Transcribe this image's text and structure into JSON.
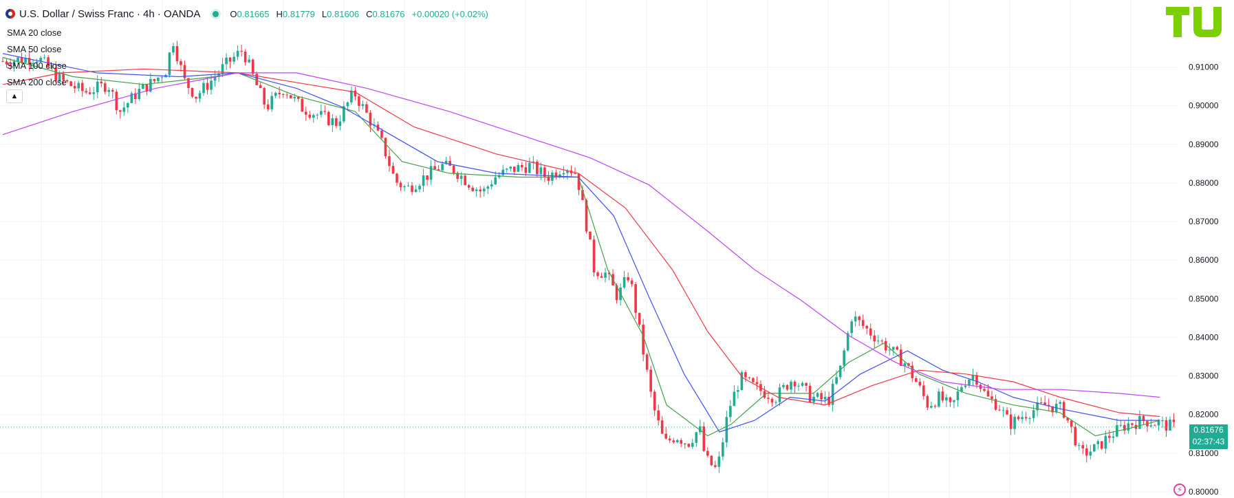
{
  "header": {
    "title": "U.S. Dollar / Swiss Franc · 4h · OANDA",
    "ohlc": {
      "o_label": "O",
      "o_value": "0.81665",
      "h_label": "H",
      "h_value": "0.81779",
      "l_label": "L",
      "l_value": "0.81606",
      "c_label": "C",
      "c_value": "0.81676",
      "change": "+0.00020 (+0.02%)"
    }
  },
  "legend": {
    "sma20": "SMA 20 close",
    "sma50": "SMA 50 close",
    "sma100": "SMA 100 close",
    "sma200": "SMA 200 close",
    "collapse_icon": "chevron-up-icon"
  },
  "price_badge": {
    "price": "0.81676",
    "countdown": "02:37:43"
  },
  "colors": {
    "up": "#22ab94",
    "down": "#f23645",
    "sma20": "#43a047",
    "sma50": "#3f51f5",
    "sma100": "#f23645",
    "sma200": "#c040fb",
    "logo": "#7ccf00"
  },
  "chart_data": {
    "type": "candlestick",
    "y_axis": {
      "ticks": [
        "0.91000",
        "0.90000",
        "0.89000",
        "0.88000",
        "0.87000",
        "0.86000",
        "0.85000",
        "0.84000",
        "0.83000",
        "0.82000",
        "0.81000",
        "0.80000"
      ],
      "range": [
        0.8,
        0.921
      ],
      "position": "right"
    },
    "last_price": 0.81676,
    "price_path": [
      [
        0,
        0.9115
      ],
      [
        0.03,
        0.9125
      ],
      [
        0.05,
        0.9065
      ],
      [
        0.07,
        0.9035
      ],
      [
        0.09,
        0.9055
      ],
      [
        0.1,
        0.8985
      ],
      [
        0.115,
        0.9035
      ],
      [
        0.13,
        0.9065
      ],
      [
        0.14,
        0.9095
      ],
      [
        0.145,
        0.9175
      ],
      [
        0.155,
        0.9065
      ],
      [
        0.165,
        0.9025
      ],
      [
        0.175,
        0.9055
      ],
      [
        0.19,
        0.9105
      ],
      [
        0.205,
        0.9145
      ],
      [
        0.215,
        0.9065
      ],
      [
        0.225,
        0.8995
      ],
      [
        0.24,
        0.9045
      ],
      [
        0.255,
        0.8995
      ],
      [
        0.27,
        0.8975
      ],
      [
        0.285,
        0.8955
      ],
      [
        0.3,
        0.9035
      ],
      [
        0.315,
        0.8955
      ],
      [
        0.325,
        0.8895
      ],
      [
        0.335,
        0.8805
      ],
      [
        0.345,
        0.8785
      ],
      [
        0.36,
        0.8815
      ],
      [
        0.375,
        0.8845
      ],
      [
        0.385,
        0.8835
      ],
      [
        0.4,
        0.8795
      ],
      [
        0.41,
        0.8775
      ],
      [
        0.42,
        0.8815
      ],
      [
        0.435,
        0.8835
      ],
      [
        0.45,
        0.8845
      ],
      [
        0.465,
        0.8815
      ],
      [
        0.48,
        0.8845
      ],
      [
        0.49,
        0.8825
      ],
      [
        0.5,
        0.8665
      ],
      [
        0.505,
        0.8575
      ],
      [
        0.515,
        0.8565
      ],
      [
        0.525,
        0.8505
      ],
      [
        0.535,
        0.8565
      ],
      [
        0.545,
        0.8395
      ],
      [
        0.555,
        0.8225
      ],
      [
        0.565,
        0.8125
      ],
      [
        0.575,
        0.8145
      ],
      [
        0.585,
        0.8125
      ],
      [
        0.595,
        0.8165
      ],
      [
        0.6,
        0.8085
      ],
      [
        0.61,
        0.8055
      ],
      [
        0.62,
        0.8215
      ],
      [
        0.63,
        0.8295
      ],
      [
        0.645,
        0.8265
      ],
      [
        0.66,
        0.8245
      ],
      [
        0.675,
        0.8295
      ],
      [
        0.69,
        0.8245
      ],
      [
        0.705,
        0.8235
      ],
      [
        0.715,
        0.8315
      ],
      [
        0.725,
        0.8455
      ],
      [
        0.74,
        0.8415
      ],
      [
        0.755,
        0.8375
      ],
      [
        0.77,
        0.8335
      ],
      [
        0.78,
        0.8285
      ],
      [
        0.79,
        0.8225
      ],
      [
        0.8,
        0.8245
      ],
      [
        0.81,
        0.8215
      ],
      [
        0.82,
        0.8285
      ],
      [
        0.83,
        0.8305
      ],
      [
        0.84,
        0.8245
      ],
      [
        0.85,
        0.8225
      ],
      [
        0.86,
        0.8175
      ],
      [
        0.875,
        0.8205
      ],
      [
        0.89,
        0.8225
      ],
      [
        0.905,
        0.8215
      ],
      [
        0.915,
        0.8145
      ],
      [
        0.92,
        0.8095
      ],
      [
        0.935,
        0.8115
      ],
      [
        0.945,
        0.8145
      ],
      [
        0.96,
        0.8175
      ],
      [
        0.975,
        0.8185
      ],
      [
        1.0,
        0.8168
      ]
    ],
    "sma": [
      {
        "name": "SMA 20 close",
        "points": [
          [
            0,
            0.9125
          ],
          [
            0.06,
            0.9075
          ],
          [
            0.12,
            0.9055
          ],
          [
            0.18,
            0.9075
          ],
          [
            0.2,
            0.9085
          ],
          [
            0.25,
            0.9025
          ],
          [
            0.3,
            0.8985
          ],
          [
            0.34,
            0.8855
          ],
          [
            0.38,
            0.8825
          ],
          [
            0.44,
            0.8815
          ],
          [
            0.49,
            0.8815
          ],
          [
            0.515,
            0.8575
          ],
          [
            0.545,
            0.8405
          ],
          [
            0.565,
            0.8225
          ],
          [
            0.6,
            0.8145
          ],
          [
            0.62,
            0.8175
          ],
          [
            0.65,
            0.8255
          ],
          [
            0.69,
            0.8255
          ],
          [
            0.72,
            0.8335
          ],
          [
            0.75,
            0.8385
          ],
          [
            0.78,
            0.8305
          ],
          [
            0.82,
            0.8255
          ],
          [
            0.86,
            0.8225
          ],
          [
            0.9,
            0.8205
          ],
          [
            0.93,
            0.8145
          ],
          [
            0.96,
            0.8165
          ],
          [
            0.985,
            0.8185
          ]
        ]
      },
      {
        "name": "SMA 50 close",
        "points": [
          [
            0,
            0.9135
          ],
          [
            0.08,
            0.9085
          ],
          [
            0.15,
            0.9075
          ],
          [
            0.2,
            0.9085
          ],
          [
            0.25,
            0.9045
          ],
          [
            0.29,
            0.8995
          ],
          [
            0.33,
            0.8925
          ],
          [
            0.37,
            0.8855
          ],
          [
            0.42,
            0.8825
          ],
          [
            0.49,
            0.8815
          ],
          [
            0.52,
            0.8715
          ],
          [
            0.55,
            0.8505
          ],
          [
            0.58,
            0.8305
          ],
          [
            0.61,
            0.8155
          ],
          [
            0.64,
            0.8185
          ],
          [
            0.67,
            0.8245
          ],
          [
            0.7,
            0.8235
          ],
          [
            0.73,
            0.8305
          ],
          [
            0.77,
            0.8365
          ],
          [
            0.8,
            0.8315
          ],
          [
            0.83,
            0.8285
          ],
          [
            0.86,
            0.8245
          ],
          [
            0.9,
            0.8215
          ],
          [
            0.95,
            0.8185
          ],
          [
            0.985,
            0.8185
          ]
        ]
      },
      {
        "name": "SMA 100 close",
        "points": [
          [
            0,
            0.9055
          ],
          [
            0.05,
            0.9085
          ],
          [
            0.12,
            0.9095
          ],
          [
            0.2,
            0.9085
          ],
          [
            0.26,
            0.9055
          ],
          [
            0.3,
            0.9035
          ],
          [
            0.35,
            0.8945
          ],
          [
            0.42,
            0.8875
          ],
          [
            0.49,
            0.8825
          ],
          [
            0.53,
            0.8735
          ],
          [
            0.57,
            0.8575
          ],
          [
            0.6,
            0.8415
          ],
          [
            0.63,
            0.8295
          ],
          [
            0.66,
            0.8245
          ],
          [
            0.7,
            0.8225
          ],
          [
            0.74,
            0.8275
          ],
          [
            0.78,
            0.8315
          ],
          [
            0.82,
            0.8305
          ],
          [
            0.86,
            0.8285
          ],
          [
            0.9,
            0.8245
          ],
          [
            0.95,
            0.8205
          ],
          [
            0.985,
            0.8195
          ]
        ]
      },
      {
        "name": "SMA 200 close",
        "points": [
          [
            0,
            0.8925
          ],
          [
            0.06,
            0.8985
          ],
          [
            0.13,
            0.9045
          ],
          [
            0.2,
            0.9085
          ],
          [
            0.25,
            0.9085
          ],
          [
            0.31,
            0.9045
          ],
          [
            0.38,
            0.8985
          ],
          [
            0.45,
            0.8915
          ],
          [
            0.5,
            0.8865
          ],
          [
            0.55,
            0.8795
          ],
          [
            0.6,
            0.8675
          ],
          [
            0.64,
            0.8575
          ],
          [
            0.68,
            0.8495
          ],
          [
            0.72,
            0.8405
          ],
          [
            0.76,
            0.8335
          ],
          [
            0.8,
            0.8285
          ],
          [
            0.85,
            0.8265
          ],
          [
            0.9,
            0.8265
          ],
          [
            0.95,
            0.8255
          ],
          [
            0.985,
            0.8245
          ]
        ]
      }
    ]
  }
}
